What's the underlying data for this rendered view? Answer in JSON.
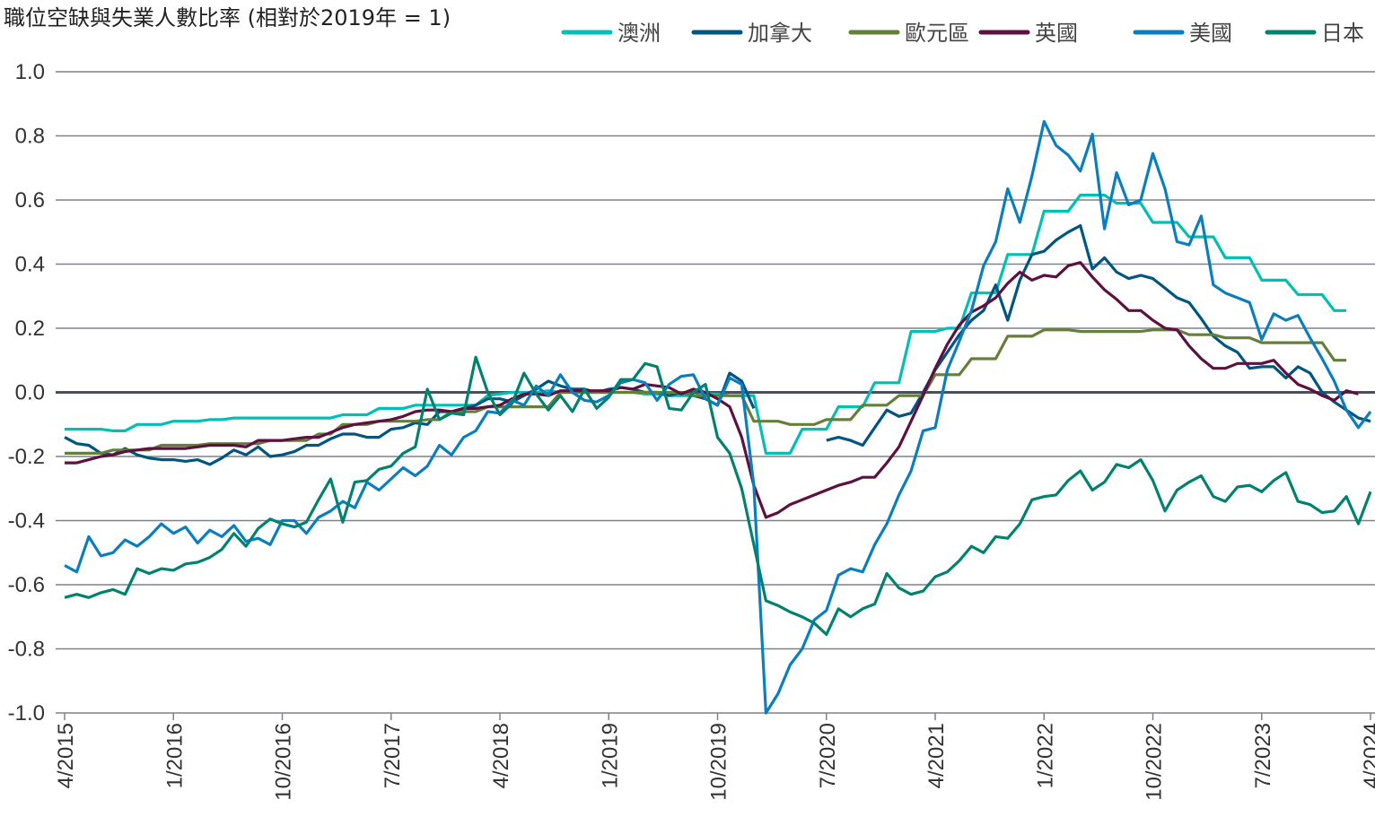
{
  "chart_data": {
    "type": "line",
    "title": "職位空缺與失業人數比率 (相對於2019年 = 1)",
    "xlabel": "",
    "ylabel": "",
    "ylim": [
      -1.0,
      1.0
    ],
    "yticks": [
      "1.0",
      "0.8",
      "0.6",
      "0.4",
      "0.2",
      "0.0",
      "-0.2",
      "-0.4",
      "-0.6",
      "-0.8",
      "-1.0"
    ],
    "xticks": [
      "4/2015",
      "1/2016",
      "10/2016",
      "7/2017",
      "4/2018",
      "1/2019",
      "10/2019",
      "7/2020",
      "4/2021",
      "1/2022",
      "10/2022",
      "7/2023",
      "4/2024"
    ],
    "grid": true,
    "legend_position": "top-right",
    "x": [
      "2015-04",
      "2015-05",
      "2015-06",
      "2015-07",
      "2015-08",
      "2015-09",
      "2015-10",
      "2015-11",
      "2015-12",
      "2016-01",
      "2016-02",
      "2016-03",
      "2016-04",
      "2016-05",
      "2016-06",
      "2016-07",
      "2016-08",
      "2016-09",
      "2016-10",
      "2016-11",
      "2016-12",
      "2017-01",
      "2017-02",
      "2017-03",
      "2017-04",
      "2017-05",
      "2017-06",
      "2017-07",
      "2017-08",
      "2017-09",
      "2017-10",
      "2017-11",
      "2017-12",
      "2018-01",
      "2018-02",
      "2018-03",
      "2018-04",
      "2018-05",
      "2018-06",
      "2018-07",
      "2018-08",
      "2018-09",
      "2018-10",
      "2018-11",
      "2018-12",
      "2019-01",
      "2019-02",
      "2019-03",
      "2019-04",
      "2019-05",
      "2019-06",
      "2019-07",
      "2019-08",
      "2019-09",
      "2019-10",
      "2019-11",
      "2019-12",
      "2020-01",
      "2020-02",
      "2020-03",
      "2020-04",
      "2020-05",
      "2020-06",
      "2020-07",
      "2020-08",
      "2020-09",
      "2020-10",
      "2020-11",
      "2020-12",
      "2021-01",
      "2021-02",
      "2021-03",
      "2021-04",
      "2021-05",
      "2021-06",
      "2021-07",
      "2021-08",
      "2021-09",
      "2021-10",
      "2021-11",
      "2021-12",
      "2022-01",
      "2022-02",
      "2022-03",
      "2022-04",
      "2022-05",
      "2022-06",
      "2022-07",
      "2022-08",
      "2022-09",
      "2022-10",
      "2022-11",
      "2022-12",
      "2023-01",
      "2023-02",
      "2023-03",
      "2023-04",
      "2023-05",
      "2023-06",
      "2023-07",
      "2023-08",
      "2023-09",
      "2023-10",
      "2023-11",
      "2023-12",
      "2024-01",
      "2024-02",
      "2024-03",
      "2024-04"
    ],
    "series": [
      {
        "name": "澳洲",
        "color": "#00bfb3",
        "values": [
          -0.115,
          -0.115,
          -0.115,
          -0.115,
          -0.12,
          -0.12,
          -0.1,
          -0.1,
          -0.1,
          -0.09,
          -0.09,
          -0.09,
          -0.085,
          -0.085,
          -0.08,
          -0.08,
          -0.08,
          -0.08,
          -0.08,
          -0.08,
          -0.08,
          -0.08,
          -0.08,
          -0.07,
          -0.07,
          -0.07,
          -0.05,
          -0.05,
          -0.05,
          -0.04,
          -0.04,
          -0.04,
          -0.04,
          -0.04,
          -0.04,
          -0.01,
          -0.005,
          0,
          0,
          0,
          0.005,
          0,
          0,
          0,
          0,
          0,
          0,
          0,
          -0.005,
          -0.005,
          -0.01,
          -0.01,
          -0.01,
          -0.005,
          -0.005,
          -0.01,
          -0.01,
          -0.01,
          -0.19,
          -0.19,
          -0.19,
          -0.115,
          -0.115,
          -0.115,
          -0.045,
          -0.045,
          -0.045,
          0.03,
          0.03,
          0.03,
          0.19,
          0.19,
          0.19,
          0.2,
          0.2,
          0.31,
          0.31,
          0.31,
          0.43,
          0.43,
          0.43,
          0.565,
          0.565,
          0.565,
          0.615,
          0.615,
          0.615,
          0.59,
          0.59,
          0.59,
          0.53,
          0.53,
          0.53,
          0.485,
          0.485,
          0.485,
          0.42,
          0.42,
          0.42,
          0.35,
          0.35,
          0.35,
          0.305,
          0.305,
          0.305,
          0.255,
          0.255,
          null,
          null
        ]
      },
      {
        "name": "加拿大",
        "color": "#005581",
        "values": [
          -0.14,
          -0.16,
          -0.165,
          -0.19,
          -0.195,
          -0.175,
          -0.195,
          -0.205,
          -0.21,
          -0.21,
          -0.215,
          -0.21,
          -0.225,
          -0.205,
          -0.18,
          -0.195,
          -0.17,
          -0.2,
          -0.195,
          -0.185,
          -0.165,
          -0.165,
          -0.145,
          -0.13,
          -0.13,
          -0.14,
          -0.14,
          -0.115,
          -0.11,
          -0.095,
          -0.1,
          -0.06,
          -0.06,
          -0.05,
          -0.04,
          -0.02,
          -0.02,
          -0.03,
          -0.01,
          0.01,
          0.035,
          0.02,
          0.01,
          0.01,
          0.0,
          0.01,
          0.015,
          0.01,
          0.0,
          0.0,
          -0.01,
          0.0,
          -0.01,
          -0.02,
          -0.04,
          0.06,
          0.035,
          -0.05,
          null,
          null,
          null,
          null,
          null,
          -0.15,
          -0.14,
          -0.15,
          -0.165,
          -0.11,
          -0.055,
          -0.075,
          -0.065,
          0.0,
          0.07,
          0.125,
          0.18,
          0.225,
          0.255,
          0.335,
          0.225,
          0.35,
          0.43,
          0.44,
          0.475,
          0.5,
          0.52,
          0.385,
          0.42,
          0.375,
          0.355,
          0.365,
          0.355,
          0.325,
          0.295,
          0.28,
          0.23,
          0.175,
          0.145,
          0.125,
          0.075,
          0.08,
          0.08,
          0.045,
          0.08,
          0.06,
          0.0,
          -0.03,
          -0.055,
          -0.08,
          -0.09
        ]
      },
      {
        "name": "歐元區",
        "color": "#647f3a",
        "values": [
          -0.19,
          -0.19,
          -0.19,
          -0.19,
          -0.18,
          -0.18,
          -0.18,
          -0.18,
          -0.165,
          -0.165,
          -0.165,
          -0.165,
          -0.16,
          -0.16,
          -0.16,
          -0.16,
          -0.16,
          -0.15,
          -0.15,
          -0.15,
          -0.15,
          -0.13,
          -0.13,
          -0.1,
          -0.1,
          -0.1,
          -0.09,
          -0.09,
          -0.09,
          -0.09,
          -0.085,
          -0.085,
          -0.06,
          -0.06,
          -0.06,
          -0.045,
          -0.045,
          -0.045,
          -0.045,
          -0.045,
          -0.045,
          0,
          0,
          0,
          0,
          0,
          0,
          0,
          0,
          0,
          0,
          0,
          -0.01,
          -0.01,
          -0.01,
          -0.01,
          -0.01,
          -0.09,
          -0.09,
          -0.09,
          -0.1,
          -0.1,
          -0.1,
          -0.085,
          -0.085,
          -0.085,
          -0.04,
          -0.04,
          -0.04,
          -0.01,
          -0.01,
          -0.01,
          0.055,
          0.055,
          0.055,
          0.105,
          0.105,
          0.105,
          0.175,
          0.175,
          0.175,
          0.195,
          0.195,
          0.195,
          0.19,
          0.19,
          0.19,
          0.19,
          0.19,
          0.19,
          0.195,
          0.195,
          0.195,
          0.18,
          0.18,
          0.18,
          0.17,
          0.17,
          0.17,
          0.155,
          0.155,
          0.155,
          0.155,
          0.155,
          0.155,
          0.1,
          0.1,
          null,
          null
        ]
      },
      {
        "name": "英國",
        "color": "#5c1140",
        "values": [
          -0.22,
          -0.22,
          -0.21,
          -0.2,
          -0.195,
          -0.185,
          -0.18,
          -0.175,
          -0.175,
          -0.175,
          -0.175,
          -0.17,
          -0.165,
          -0.165,
          -0.165,
          -0.17,
          -0.15,
          -0.15,
          -0.15,
          -0.145,
          -0.14,
          -0.14,
          -0.125,
          -0.11,
          -0.1,
          -0.095,
          -0.09,
          -0.085,
          -0.075,
          -0.06,
          -0.055,
          -0.055,
          -0.06,
          -0.05,
          -0.05,
          -0.045,
          -0.04,
          -0.02,
          -0.005,
          -0.005,
          -0.01,
          0.005,
          0.005,
          0.005,
          0.005,
          0.005,
          0.015,
          0.01,
          0.025,
          0.02,
          0.015,
          -0.005,
          0.01,
          0.0,
          -0.02,
          -0.045,
          -0.14,
          -0.29,
          -0.39,
          -0.375,
          -0.35,
          -0.335,
          -0.32,
          -0.305,
          -0.29,
          -0.28,
          -0.265,
          -0.265,
          -0.22,
          -0.17,
          -0.09,
          -0.01,
          0.075,
          0.15,
          0.21,
          0.25,
          0.27,
          0.295,
          0.34,
          0.375,
          0.35,
          0.365,
          0.36,
          0.395,
          0.405,
          0.36,
          0.32,
          0.29,
          0.255,
          0.255,
          0.225,
          0.2,
          0.195,
          0.145,
          0.105,
          0.075,
          0.075,
          0.09,
          0.09,
          0.09,
          0.1,
          0.06,
          0.025,
          0.01,
          -0.01,
          -0.025,
          0.005,
          -0.005,
          null
        ]
      },
      {
        "name": "美國",
        "color": "#0a7ebf",
        "values": [
          -0.54,
          -0.56,
          -0.45,
          -0.51,
          -0.5,
          -0.46,
          -0.48,
          -0.45,
          -0.41,
          -0.44,
          -0.42,
          -0.47,
          -0.43,
          -0.45,
          -0.415,
          -0.465,
          -0.455,
          -0.475,
          -0.4,
          -0.4,
          -0.44,
          -0.39,
          -0.37,
          -0.34,
          -0.36,
          -0.28,
          -0.305,
          -0.27,
          -0.235,
          -0.26,
          -0.23,
          -0.165,
          -0.195,
          -0.14,
          -0.12,
          -0.06,
          -0.065,
          -0.025,
          -0.04,
          0.02,
          -0.01,
          0.055,
          0.0,
          -0.025,
          -0.03,
          -0.01,
          0.03,
          0.04,
          0.03,
          -0.025,
          0.025,
          0.05,
          0.055,
          -0.02,
          -0.04,
          0.045,
          0.025,
          -0.29,
          -1.0,
          -0.94,
          -0.85,
          -0.8,
          -0.71,
          -0.68,
          -0.57,
          -0.55,
          -0.56,
          -0.475,
          -0.41,
          -0.32,
          -0.245,
          -0.12,
          -0.11,
          0.07,
          0.16,
          0.255,
          0.395,
          0.47,
          0.635,
          0.53,
          0.675,
          0.845,
          0.77,
          0.74,
          0.69,
          0.805,
          0.51,
          0.685,
          0.585,
          0.6,
          0.745,
          0.635,
          0.47,
          0.46,
          0.55,
          0.335,
          0.31,
          0.295,
          0.28,
          0.165,
          0.245,
          0.225,
          0.24,
          0.17,
          0.105,
          0.035,
          -0.055,
          -0.11,
          -0.06
        ]
      },
      {
        "name": "日本",
        "color": "#00826f",
        "values": [
          -0.64,
          -0.63,
          -0.64,
          -0.625,
          -0.615,
          -0.63,
          -0.55,
          -0.565,
          -0.55,
          -0.555,
          -0.535,
          -0.53,
          -0.515,
          -0.49,
          -0.44,
          -0.48,
          -0.425,
          -0.395,
          -0.41,
          -0.42,
          -0.405,
          -0.335,
          -0.27,
          -0.405,
          -0.28,
          -0.275,
          -0.24,
          -0.23,
          -0.19,
          -0.17,
          0.01,
          -0.085,
          -0.065,
          -0.07,
          0.11,
          0.0,
          -0.07,
          -0.035,
          0.06,
          -0.005,
          -0.055,
          -0.01,
          -0.06,
          0.01,
          -0.05,
          -0.015,
          0.04,
          0.04,
          0.09,
          0.08,
          -0.05,
          -0.055,
          0.0,
          0.025,
          -0.14,
          -0.19,
          -0.3,
          -0.475,
          -0.65,
          -0.665,
          -0.685,
          -0.7,
          -0.72,
          -0.755,
          -0.675,
          -0.7,
          -0.675,
          -0.66,
          -0.565,
          -0.61,
          -0.63,
          -0.62,
          -0.575,
          -0.56,
          -0.525,
          -0.48,
          -0.5,
          -0.45,
          -0.455,
          -0.41,
          -0.335,
          -0.325,
          -0.32,
          -0.275,
          -0.245,
          -0.305,
          -0.28,
          -0.225,
          -0.235,
          -0.21,
          -0.275,
          -0.37,
          -0.305,
          -0.28,
          -0.26,
          -0.325,
          -0.34,
          -0.295,
          -0.29,
          -0.31,
          -0.275,
          -0.25,
          -0.34,
          -0.35,
          -0.375,
          -0.37,
          -0.325,
          -0.41,
          -0.31
        ]
      }
    ]
  }
}
